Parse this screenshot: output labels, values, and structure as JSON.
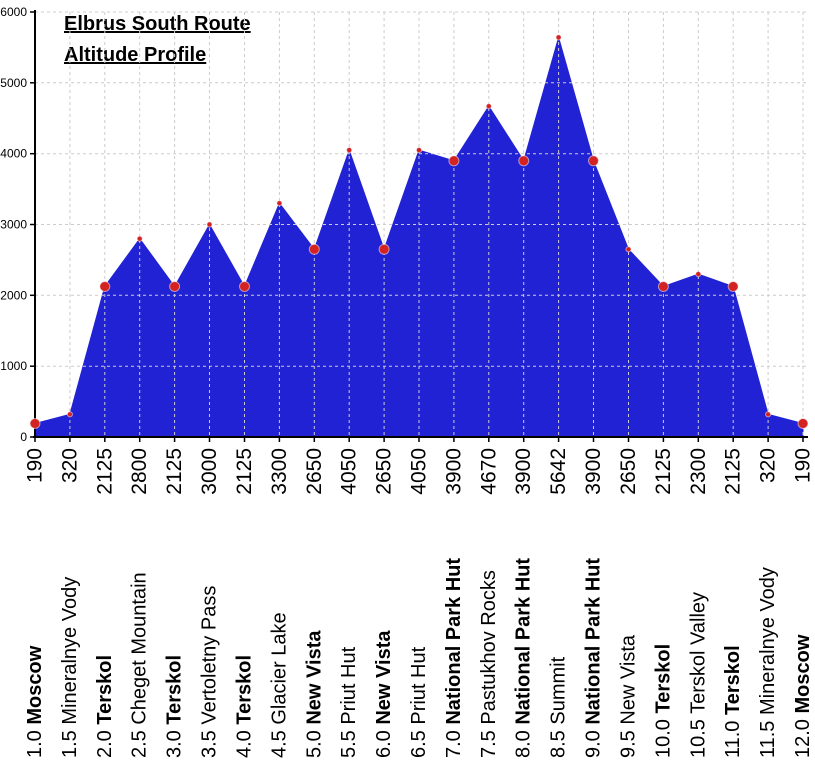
{
  "chart_data": {
    "type": "area",
    "title": "Elbrus South Route",
    "subtitle": "Altitude Profile",
    "xlabel": "",
    "ylabel": "",
    "ylim": [
      0,
      6000
    ],
    "yticks": [
      0,
      1000,
      2000,
      3000,
      4000,
      5000,
      6000
    ],
    "grid": "dashed",
    "legend": "none",
    "x_axis_note": "each point labeled with altitude value and rotated day/station label; bold stations are overnight stops with large markers",
    "points": [
      {
        "day": "1.0",
        "station": "Moscow",
        "altitude": 190,
        "major": true
      },
      {
        "day": "1.5",
        "station": "Mineralnye Vody",
        "altitude": 320,
        "major": false
      },
      {
        "day": "2.0",
        "station": "Terskol",
        "altitude": 2125,
        "major": true
      },
      {
        "day": "2.5",
        "station": "Cheget Mountain",
        "altitude": 2800,
        "major": false
      },
      {
        "day": "3.0",
        "station": "Terskol",
        "altitude": 2125,
        "major": true
      },
      {
        "day": "3.5",
        "station": "Vertoletny Pass",
        "altitude": 3000,
        "major": false
      },
      {
        "day": "4.0",
        "station": "Terskol",
        "altitude": 2125,
        "major": true
      },
      {
        "day": "4.5",
        "station": "Glacier Lake",
        "altitude": 3300,
        "major": false
      },
      {
        "day": "5.0",
        "station": "New Vista",
        "altitude": 2650,
        "major": true
      },
      {
        "day": "5.5",
        "station": "Priut Hut",
        "altitude": 4050,
        "major": false
      },
      {
        "day": "6.0",
        "station": "New Vista",
        "altitude": 2650,
        "major": true
      },
      {
        "day": "6.5",
        "station": "Priut Hut",
        "altitude": 4050,
        "major": false
      },
      {
        "day": "7.0",
        "station": "National Park Hut",
        "altitude": 3900,
        "major": true
      },
      {
        "day": "7.5",
        "station": "Pastukhov Rocks",
        "altitude": 4670,
        "major": false
      },
      {
        "day": "8.0",
        "station": "National Park Hut",
        "altitude": 3900,
        "major": true
      },
      {
        "day": "8.5",
        "station": "Summit",
        "altitude": 5642,
        "major": false
      },
      {
        "day": "9.0",
        "station": "National Park Hut",
        "altitude": 3900,
        "major": true
      },
      {
        "day": "9.5",
        "station": "New Vista",
        "altitude": 2650,
        "major": false
      },
      {
        "day": "10.0",
        "station": "Terskol",
        "altitude": 2125,
        "major": true
      },
      {
        "day": "10.5",
        "station": "Terskol Valley",
        "altitude": 2300,
        "major": false
      },
      {
        "day": "11.0",
        "station": "Terskol",
        "altitude": 2125,
        "major": true
      },
      {
        "day": "11.5",
        "station": "Mineralnye Vody",
        "altitude": 320,
        "major": false
      },
      {
        "day": "12.0",
        "station": "Moscow",
        "altitude": 190,
        "major": true
      }
    ],
    "colors": {
      "fill": "#2222d5",
      "marker": "#d32222",
      "axis": "#000000",
      "grid": "#cccccc",
      "text": "#000000",
      "background": "#ffffff"
    },
    "marker_radius": {
      "major": 5,
      "minor": 2.6
    }
  }
}
